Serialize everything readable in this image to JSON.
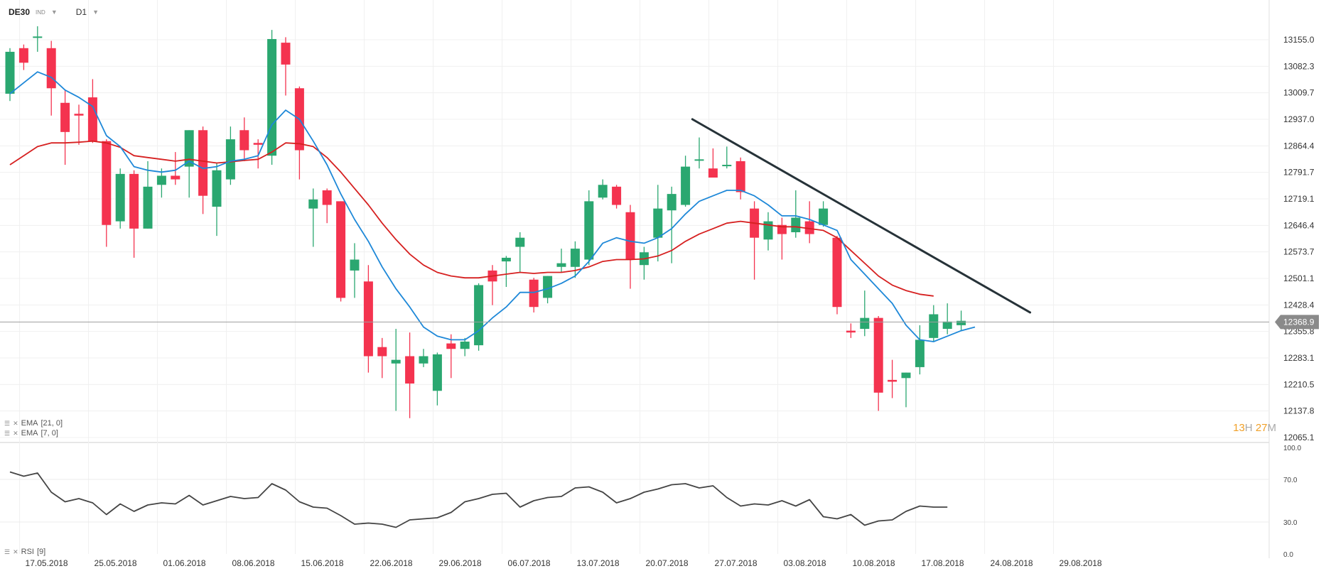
{
  "toolbar": {
    "symbol": "DE30",
    "type": "IND",
    "timeframe": "D1"
  },
  "indicators": {
    "ema21_label": "EMA",
    "ema21_params": "[21, 0]",
    "ema7_label": "EMA",
    "ema7_params": "[7, 0]",
    "rsi_label": "RSI",
    "rsi_params": "[9]"
  },
  "timer": {
    "hours": "13",
    "h_unit": "H",
    "minutes": "27",
    "m_unit": "M"
  },
  "colors": {
    "up": "#2aa770",
    "down": "#f4334f",
    "ema7": "#1e88d8",
    "ema21": "#d62020",
    "trendline": "#263238",
    "rsi": "#444444",
    "price_badge": "#8a8a8a"
  },
  "chart_data": [
    {
      "type": "candlestick",
      "title": "",
      "y_range": [
        12050,
        13180
      ],
      "y_ticks": [
        "13155.0",
        "13082.3",
        "13009.7",
        "12937.0",
        "12864.4",
        "12791.7",
        "12719.1",
        "12646.4",
        "12573.7",
        "12501.1",
        "12428.4",
        "12355.8",
        "12283.1",
        "12210.5",
        "12137.8",
        "12065.1"
      ],
      "current_price": "12368.9",
      "x_ticks": [
        {
          "label": "17.05.2018",
          "i": 0.7
        },
        {
          "label": "25.05.2018",
          "i": 5.7
        },
        {
          "label": "01.06.2018",
          "i": 10.7
        },
        {
          "label": "08.06.2018",
          "i": 15.7
        },
        {
          "label": "15.06.2018",
          "i": 20.7
        },
        {
          "label": "22.06.2018",
          "i": 25.7
        },
        {
          "label": "29.06.2018",
          "i": 30.7
        },
        {
          "label": "06.07.2018",
          "i": 35.7
        },
        {
          "label": "13.07.2018",
          "i": 40.7
        },
        {
          "label": "20.07.2018",
          "i": 45.7
        },
        {
          "label": "27.07.2018",
          "i": 50.7
        },
        {
          "label": "03.08.2018",
          "i": 55.7
        },
        {
          "label": "10.08.2018",
          "i": 60.7
        },
        {
          "label": "17.08.2018",
          "i": 65.7
        },
        {
          "label": "24.08.2018",
          "i": 70.7
        },
        {
          "label": "29.08.2018",
          "i": 75.7
        }
      ],
      "candles": [
        {
          "o": 12995,
          "h": 13120,
          "l": 12975,
          "c": 13110
        },
        {
          "o": 13120,
          "h": 13130,
          "l": 13060,
          "c": 13080
        },
        {
          "o": 13150,
          "h": 13180,
          "l": 13110,
          "c": 13152
        },
        {
          "o": 13120,
          "h": 13140,
          "l": 12935,
          "c": 13010
        },
        {
          "o": 12970,
          "h": 13005,
          "l": 12800,
          "c": 12890
        },
        {
          "o": 12940,
          "h": 12965,
          "l": 12855,
          "c": 12935
        },
        {
          "o": 12985,
          "h": 13035,
          "l": 12860,
          "c": 12865
        },
        {
          "o": 12865,
          "h": 12870,
          "l": 12575,
          "c": 12635
        },
        {
          "o": 12645,
          "h": 12790,
          "l": 12625,
          "c": 12775
        },
        {
          "o": 12775,
          "h": 12785,
          "l": 12545,
          "c": 12625
        },
        {
          "o": 12625,
          "h": 12810,
          "l": 12625,
          "c": 12740
        },
        {
          "o": 12745,
          "h": 12790,
          "l": 12710,
          "c": 12770
        },
        {
          "o": 12770,
          "h": 12835,
          "l": 12745,
          "c": 12760
        },
        {
          "o": 12795,
          "h": 12895,
          "l": 12710,
          "c": 12895
        },
        {
          "o": 12895,
          "h": 12905,
          "l": 12665,
          "c": 12715
        },
        {
          "o": 12685,
          "h": 12805,
          "l": 12605,
          "c": 12785
        },
        {
          "o": 12760,
          "h": 12905,
          "l": 12745,
          "c": 12870
        },
        {
          "o": 12895,
          "h": 12930,
          "l": 12810,
          "c": 12840
        },
        {
          "o": 12860,
          "h": 12870,
          "l": 12790,
          "c": 12855
        },
        {
          "o": 12825,
          "h": 13170,
          "l": 12800,
          "c": 13145
        },
        {
          "o": 13135,
          "h": 13150,
          "l": 12990,
          "c": 13075
        },
        {
          "o": 13010,
          "h": 13015,
          "l": 12760,
          "c": 12840
        },
        {
          "o": 12680,
          "h": 12735,
          "l": 12575,
          "c": 12705
        },
        {
          "o": 12730,
          "h": 12735,
          "l": 12640,
          "c": 12690
        },
        {
          "o": 12700,
          "h": 12700,
          "l": 12425,
          "c": 12435
        },
        {
          "o": 12510,
          "h": 12585,
          "l": 12435,
          "c": 12540
        },
        {
          "o": 12480,
          "h": 12525,
          "l": 12230,
          "c": 12275
        },
        {
          "o": 12300,
          "h": 12325,
          "l": 12215,
          "c": 12275
        },
        {
          "o": 12255,
          "h": 12350,
          "l": 12125,
          "c": 12265
        },
        {
          "o": 12275,
          "h": 12340,
          "l": 12105,
          "c": 12200
        },
        {
          "o": 12255,
          "h": 12295,
          "l": 12245,
          "c": 12275
        },
        {
          "o": 12180,
          "h": 12285,
          "l": 12140,
          "c": 12280
        },
        {
          "o": 12310,
          "h": 12335,
          "l": 12215,
          "c": 12295
        },
        {
          "o": 12295,
          "h": 12325,
          "l": 12275,
          "c": 12315
        },
        {
          "o": 12305,
          "h": 12475,
          "l": 12290,
          "c": 12470
        },
        {
          "o": 12510,
          "h": 12525,
          "l": 12415,
          "c": 12480
        },
        {
          "o": 12535,
          "h": 12550,
          "l": 12465,
          "c": 12545
        },
        {
          "o": 12575,
          "h": 12615,
          "l": 12505,
          "c": 12600
        },
        {
          "o": 12485,
          "h": 12490,
          "l": 12395,
          "c": 12410
        },
        {
          "o": 12435,
          "h": 12495,
          "l": 12420,
          "c": 12495
        },
        {
          "o": 12520,
          "h": 12570,
          "l": 12505,
          "c": 12530
        },
        {
          "o": 12520,
          "h": 12590,
          "l": 12490,
          "c": 12570
        },
        {
          "o": 12540,
          "h": 12730,
          "l": 12525,
          "c": 12700
        },
        {
          "o": 12710,
          "h": 12760,
          "l": 12705,
          "c": 12745
        },
        {
          "o": 12740,
          "h": 12745,
          "l": 12680,
          "c": 12690
        },
        {
          "o": 12670,
          "h": 12690,
          "l": 12460,
          "c": 12540
        },
        {
          "o": 12525,
          "h": 12575,
          "l": 12485,
          "c": 12560
        },
        {
          "o": 12600,
          "h": 12745,
          "l": 12535,
          "c": 12680
        },
        {
          "o": 12675,
          "h": 12740,
          "l": 12530,
          "c": 12720
        },
        {
          "o": 12690,
          "h": 12825,
          "l": 12685,
          "c": 12795
        },
        {
          "o": 12815,
          "h": 12875,
          "l": 12790,
          "c": 12815
        },
        {
          "o": 12790,
          "h": 12845,
          "l": 12775,
          "c": 12765
        },
        {
          "o": 12800,
          "h": 12850,
          "l": 12790,
          "c": 12800
        },
        {
          "o": 12810,
          "h": 12820,
          "l": 12705,
          "c": 12725
        },
        {
          "o": 12680,
          "h": 12700,
          "l": 12485,
          "c": 12600
        },
        {
          "o": 12595,
          "h": 12670,
          "l": 12565,
          "c": 12645
        },
        {
          "o": 12635,
          "h": 12655,
          "l": 12540,
          "c": 12610
        },
        {
          "o": 12615,
          "h": 12730,
          "l": 12600,
          "c": 12655
        },
        {
          "o": 12645,
          "h": 12700,
          "l": 12585,
          "c": 12610
        },
        {
          "o": 12635,
          "h": 12700,
          "l": 12630,
          "c": 12680
        },
        {
          "o": 12600,
          "h": 12605,
          "l": 12390,
          "c": 12410
        },
        {
          "o": 12345,
          "h": 12365,
          "l": 12325,
          "c": 12340
        },
        {
          "o": 12350,
          "h": 12455,
          "l": 12330,
          "c": 12380
        },
        {
          "o": 12380,
          "h": 12385,
          "l": 12125,
          "c": 12175
        },
        {
          "o": 12210,
          "h": 12265,
          "l": 12160,
          "c": 12205
        },
        {
          "o": 12215,
          "h": 12230,
          "l": 12135,
          "c": 12230
        },
        {
          "o": 12245,
          "h": 12360,
          "l": 12225,
          "c": 12320
        },
        {
          "o": 12325,
          "h": 12415,
          "l": 12315,
          "c": 12390
        },
        {
          "o": 12350,
          "h": 12420,
          "l": 12335,
          "c": 12370
        },
        {
          "o": 12360,
          "h": 12400,
          "l": 12345,
          "c": 12372
        }
      ],
      "ema7": [
        12995,
        13025,
        13055,
        13040,
        13005,
        12985,
        12960,
        12880,
        12850,
        12795,
        12785,
        12780,
        12785,
        12810,
        12790,
        12795,
        12810,
        12815,
        12825,
        12910,
        12950,
        12925,
        12865,
        12800,
        12720,
        12650,
        12590,
        12520,
        12460,
        12410,
        12355,
        12330,
        12320,
        12320,
        12345,
        12380,
        12410,
        12450,
        12450,
        12460,
        12475,
        12495,
        12535,
        12585,
        12600,
        12590,
        12585,
        12600,
        12625,
        12665,
        12700,
        12715,
        12730,
        12730,
        12715,
        12690,
        12660,
        12660,
        12650,
        12635,
        12620,
        12540,
        12500,
        12460,
        12420,
        12360,
        12320,
        12315,
        12330,
        12345,
        12355
      ],
      "ema21": [
        12800,
        12825,
        12850,
        12860,
        12860,
        12862,
        12865,
        12860,
        12848,
        12825,
        12820,
        12815,
        12810,
        12815,
        12810,
        12805,
        12808,
        12812,
        12815,
        12835,
        12860,
        12858,
        12850,
        12820,
        12780,
        12735,
        12690,
        12640,
        12595,
        12555,
        12525,
        12505,
        12495,
        12490,
        12490,
        12495,
        12500,
        12505,
        12502,
        12505,
        12505,
        12510,
        12520,
        12535,
        12540,
        12540,
        12542,
        12550,
        12565,
        12590,
        12610,
        12625,
        12640,
        12645,
        12640,
        12635,
        12630,
        12630,
        12625,
        12620,
        12600,
        12565,
        12530,
        12495,
        12470,
        12455,
        12445,
        12440
      ],
      "trendline": [
        {
          "i": 49.5,
          "p": 12925
        },
        {
          "i": 74,
          "p": 12395
        }
      ]
    },
    {
      "type": "line",
      "title": "",
      "y_range": [
        0,
        100
      ],
      "y_ticks": [
        "100.0",
        "70.0",
        "30.0",
        "0.0"
      ],
      "rsi": [
        77,
        73,
        76,
        58,
        49,
        52,
        48,
        37,
        47,
        40,
        46,
        48,
        47,
        55,
        46,
        50,
        54,
        52,
        53,
        66,
        60,
        49,
        44,
        43,
        36,
        28,
        29,
        28,
        25,
        32,
        33,
        34,
        39,
        49,
        52,
        56,
        57,
        44,
        50,
        53,
        54,
        62,
        63,
        58,
        48,
        52,
        58,
        61,
        65,
        66,
        62,
        64,
        53,
        45,
        47,
        46,
        50,
        45,
        51,
        35,
        33,
        37,
        27,
        31,
        32,
        40,
        45,
        44,
        44
      ]
    }
  ]
}
